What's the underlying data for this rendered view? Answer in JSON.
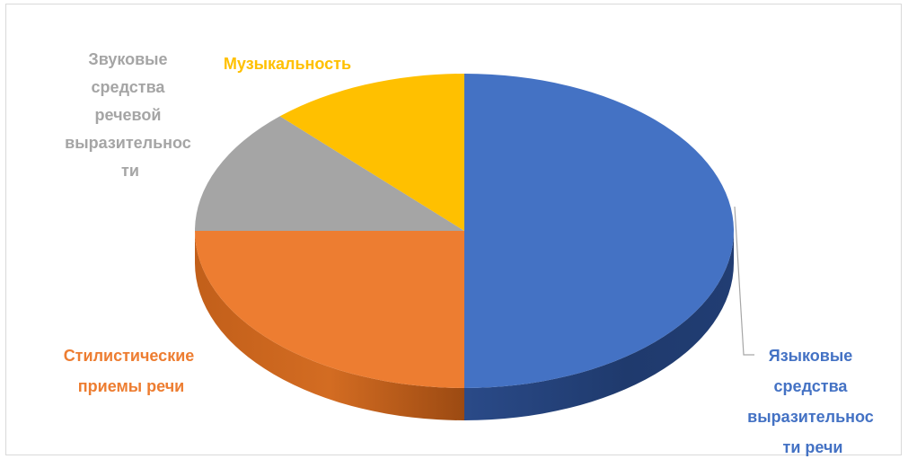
{
  "chart_data": {
    "type": "pie",
    "style": "3d",
    "title": "",
    "categories": [
      "Языковые средства выразительности речи",
      "Стилистические приемы речи",
      "Звуковые средства речевой выразительности",
      "Музыкальность"
    ],
    "values": [
      50,
      25,
      13,
      12
    ],
    "colors": [
      "#4472C4",
      "#ED7D31",
      "#A5A5A5",
      "#FFC000"
    ],
    "label_lines": {
      "lang": [
        "Языковые",
        "средства",
        "выразительнос",
        "ти речи"
      ],
      "style": [
        "Стилистические",
        "приемы речи"
      ],
      "sound": [
        "Звуковые",
        "средства",
        "речевой",
        "выразительнос",
        "ти"
      ],
      "music": [
        "Музыкальность"
      ]
    },
    "legend": "none"
  }
}
